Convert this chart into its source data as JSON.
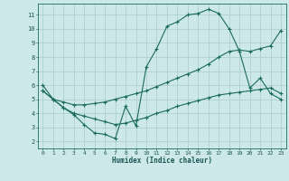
{
  "xlabel": "Humidex (Indice chaleur)",
  "bg_color": "#cce8e8",
  "grid_color": "#aacaca",
  "line_color": "#1a6b5a",
  "xlim": [
    -0.5,
    23.5
  ],
  "ylim": [
    1.5,
    11.8
  ],
  "xticks": [
    0,
    1,
    2,
    3,
    4,
    5,
    6,
    7,
    8,
    9,
    10,
    11,
    12,
    13,
    14,
    15,
    16,
    17,
    18,
    19,
    20,
    21,
    22,
    23
  ],
  "yticks": [
    2,
    3,
    4,
    5,
    6,
    7,
    8,
    9,
    10,
    11
  ],
  "line1_x": [
    0,
    1,
    2,
    3,
    4,
    5,
    6,
    7,
    8,
    9,
    10,
    11,
    12,
    13,
    14,
    15,
    16,
    17,
    18,
    19,
    20,
    21,
    22,
    23
  ],
  "line1_y": [
    6.0,
    5.0,
    4.4,
    3.9,
    3.2,
    2.6,
    2.5,
    2.2,
    4.5,
    3.1,
    7.3,
    8.6,
    10.2,
    10.5,
    11.0,
    11.1,
    11.4,
    11.1,
    10.0,
    8.4,
    5.8,
    6.5,
    5.4,
    5.0
  ],
  "line2_x": [
    0,
    1,
    2,
    3,
    4,
    5,
    6,
    7,
    8,
    9,
    10,
    11,
    12,
    13,
    14,
    15,
    16,
    17,
    18,
    19,
    20,
    21,
    22,
    23
  ],
  "line2_y": [
    5.6,
    5.0,
    4.8,
    4.6,
    4.6,
    4.7,
    4.8,
    5.0,
    5.2,
    5.4,
    5.6,
    5.9,
    6.2,
    6.5,
    6.8,
    7.1,
    7.5,
    8.0,
    8.4,
    8.5,
    8.4,
    8.6,
    8.8,
    9.9
  ],
  "line3_x": [
    0,
    1,
    2,
    3,
    4,
    5,
    6,
    7,
    8,
    9,
    10,
    11,
    12,
    13,
    14,
    15,
    16,
    17,
    18,
    19,
    20,
    21,
    22,
    23
  ],
  "line3_y": [
    5.6,
    5.0,
    4.4,
    4.0,
    3.8,
    3.6,
    3.4,
    3.2,
    3.3,
    3.5,
    3.7,
    4.0,
    4.2,
    4.5,
    4.7,
    4.9,
    5.1,
    5.3,
    5.4,
    5.5,
    5.6,
    5.7,
    5.8,
    5.4
  ]
}
